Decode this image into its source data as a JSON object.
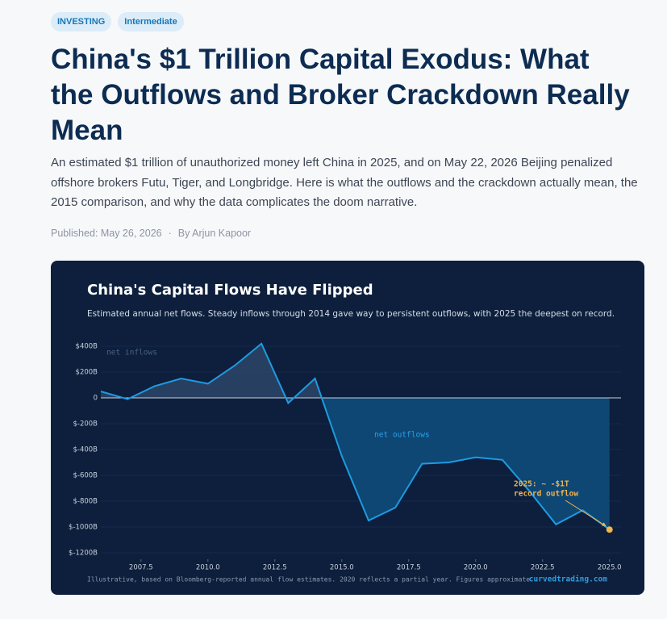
{
  "header": {
    "badges": [
      "INVESTING",
      "Intermediate"
    ],
    "title": "China's $1 Trillion Capital Exodus: What the Outflows and Broker Crackdown Really Mean",
    "dek": "An estimated $1 trillion of unauthorized money left China in 2025, and on May 22, 2026 Beijing penalized offshore brokers Futu, Tiger, and Longbridge. Here is what the outflows and the crackdown actually mean, the 2015 comparison, and why the data complicates the doom narrative.",
    "published": "Published: May 26, 2026",
    "author": "By Arjun Kapoor"
  },
  "chart_data": {
    "type": "area-line",
    "title": "China's Capital Flows Have Flipped",
    "subtitle": "Estimated annual net flows. Steady inflows through 2014 gave way to persistent outflows, with 2025 the deepest on record.",
    "x": [
      2006,
      2007,
      2008,
      2009,
      2010,
      2011,
      2012,
      2013,
      2014,
      2015,
      2016,
      2017,
      2018,
      2019,
      2020,
      2021,
      2022,
      2023,
      2024,
      2025
    ],
    "values": [
      50,
      -10,
      90,
      150,
      110,
      250,
      420,
      -40,
      150,
      -450,
      -950,
      -850,
      -510,
      -500,
      -460,
      -480,
      -720,
      -980,
      -870,
      -1020
    ],
    "color": "#1e9be0",
    "inflow_fill": "#2a4466",
    "outflow_fill": "#0e4a7a",
    "highlight_color": "#f0b44c",
    "xlim": [
      2006,
      2025.4
    ],
    "ylim": [
      -1250,
      450
    ],
    "xticks": [
      2007.5,
      {
        "value": 2010,
        "label": "2010.0"
      },
      2012.5,
      {
        "value": 2015,
        "label": "2015.0"
      },
      2017.5,
      {
        "value": 2020,
        "label": "2020.0"
      },
      2022.5,
      {
        "value": 2025,
        "label": "2025.0"
      }
    ],
    "yticks": [
      {
        "value": 400,
        "label": "$400B"
      },
      {
        "value": 200,
        "label": "$200B"
      },
      0,
      {
        "value": -200,
        "label": "$-200B"
      },
      {
        "value": -400,
        "label": "$-400B"
      },
      {
        "value": -600,
        "label": "$-600B"
      },
      {
        "value": -800,
        "label": "$-800B"
      },
      {
        "value": -1000,
        "label": "$-1000B"
      },
      {
        "value": -1200,
        "label": "$-1200B"
      }
    ],
    "grid": true,
    "annotations": [
      "net inflows",
      "net outflows",
      "2025: ~ -$1T",
      "record outflow"
    ],
    "note": "Illustrative, based on Bloomberg-reported annual flow estimates. 2020 reflects a partial year. Figures approximate.",
    "source": "curvedtrading.com"
  }
}
